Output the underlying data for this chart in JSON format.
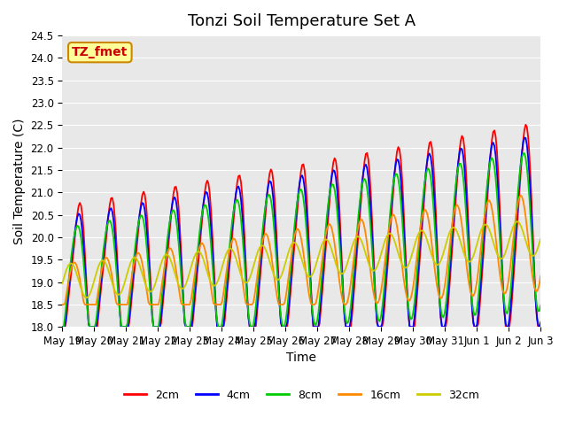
{
  "title": "Tonzi Soil Temperature Set A",
  "xlabel": "Time",
  "ylabel": "Soil Temperature (C)",
  "ylim": [
    18.0,
    24.5
  ],
  "xtick_labels": [
    "May 19",
    "May 20",
    "May 21",
    "May 22",
    "May 23",
    "May 24",
    "May 25",
    "May 26",
    "May 27",
    "May 28",
    "May 29",
    "May 30",
    "May 31",
    "Jun 1",
    "Jun 2",
    "Jun 3"
  ],
  "colors": {
    "2cm": "#ff0000",
    "4cm": "#0000ff",
    "8cm": "#00cc00",
    "16cm": "#ff8800",
    "32cm": "#cccc00"
  },
  "annotation_text": "TZ_fmet",
  "annotation_color": "#cc0000",
  "annotation_bg": "#ffff99",
  "annotation_border": "#cc8800",
  "plot_bg_color": "#e8e8e8",
  "title_fontsize": 13,
  "axis_label_fontsize": 10,
  "tick_fontsize": 8.5,
  "legend_fontsize": 9,
  "line_width": 1.3,
  "yticks": [
    18.0,
    18.5,
    19.0,
    19.5,
    20.0,
    20.5,
    21.0,
    21.5,
    22.0,
    22.5,
    23.0,
    23.5,
    24.0,
    24.5
  ]
}
